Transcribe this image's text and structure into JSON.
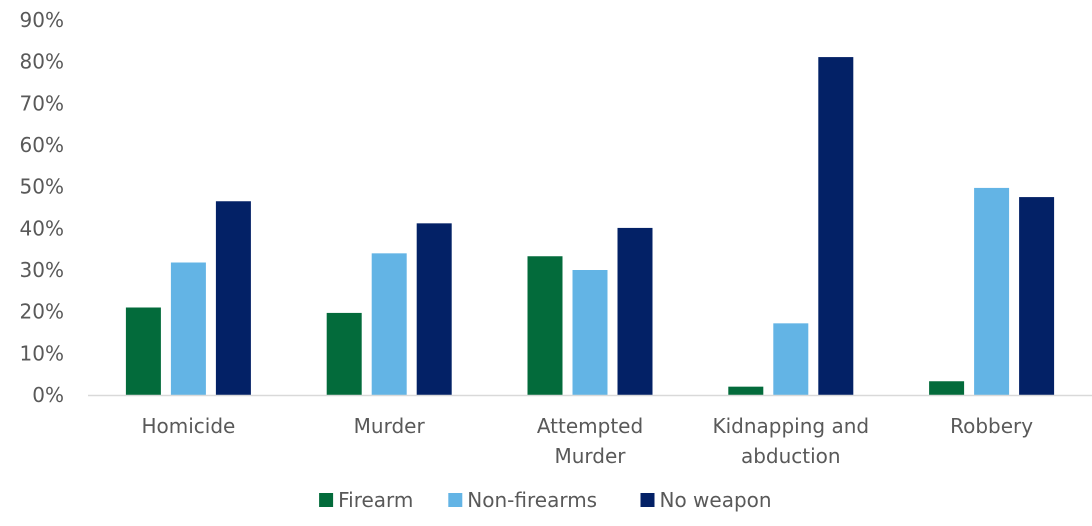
{
  "chart_data": {
    "type": "bar",
    "categories": [
      "Homicide",
      "Murder",
      "Attempted Murder",
      "Kidnapping and abduction",
      "Robbery"
    ],
    "category_lines": [
      [
        "Homicide"
      ],
      [
        "Murder"
      ],
      [
        "Attempted",
        "Murder"
      ],
      [
        "Kidnapping and",
        "abduction"
      ],
      [
        "Robbery"
      ]
    ],
    "series": [
      {
        "name": "Firearm",
        "color": "#036b3b",
        "values": [
          21,
          19.7,
          33.3,
          2,
          3.3
        ]
      },
      {
        "name": "Non-firearms",
        "color": "#63b4e5",
        "values": [
          31.8,
          34,
          30,
          17.2,
          49.7
        ]
      },
      {
        "name": "No weapon",
        "color": "#032166",
        "values": [
          46.5,
          41.2,
          40.1,
          81.1,
          47.5
        ]
      }
    ],
    "ylim": [
      0,
      90
    ],
    "yticks": [
      0,
      10,
      20,
      30,
      40,
      50,
      60,
      70,
      80,
      90
    ],
    "ytick_labels": [
      "0%",
      "10%",
      "20%",
      "30%",
      "40%",
      "50%",
      "60%",
      "70%",
      "80%",
      "90%"
    ],
    "grid": false,
    "legend_position": "bottom",
    "axis_color": "#d9d9d9",
    "text_color": "#595959"
  }
}
